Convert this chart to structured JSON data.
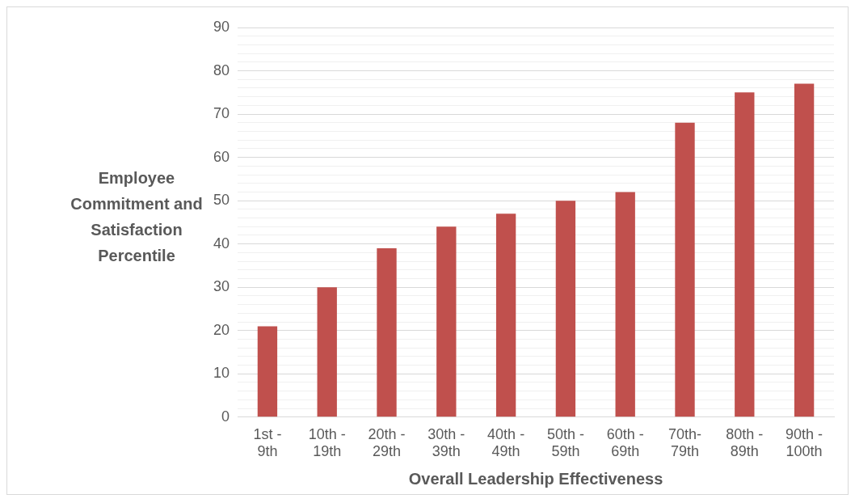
{
  "chart_data": {
    "type": "bar",
    "xlabel": "Overall Leadership Effectiveness",
    "ylabel": "Employee Commitment and Satisfaction Percentile",
    "categories": [
      "1st - 9th",
      "10th - 19th",
      "20th - 29th",
      "30th - 39th",
      "40th - 49th",
      "50th - 59th",
      "60th - 69th",
      "70th-79th",
      "80th - 89th",
      "90th - 100th"
    ],
    "values": [
      21,
      30,
      39,
      44,
      47,
      50,
      52,
      68,
      75,
      77
    ],
    "color": "#c0504d",
    "ylim": [
      0,
      90
    ],
    "yticks": [
      0,
      {
        "value": 2,
        "label": null
      },
      {
        "value": 4,
        "label": null
      },
      {
        "value": 6,
        "label": null
      },
      {
        "value": 8,
        "label": null
      },
      10,
      {
        "value": 12,
        "label": null
      },
      {
        "value": 14,
        "label": null
      },
      {
        "value": 16,
        "label": null
      },
      {
        "value": 18,
        "label": null
      },
      20,
      {
        "value": 22,
        "label": null
      },
      {
        "value": 24,
        "label": null
      },
      {
        "value": 26,
        "label": null
      },
      {
        "value": 28,
        "label": null
      },
      30,
      {
        "value": 32,
        "label": null
      },
      {
        "value": 34,
        "label": null
      },
      {
        "value": 36,
        "label": null
      },
      {
        "value": 38,
        "label": null
      },
      40,
      {
        "value": 42,
        "label": null
      },
      {
        "value": 44,
        "label": null
      },
      {
        "value": 46,
        "label": null
      },
      {
        "value": 48,
        "label": null
      },
      50,
      {
        "value": 52,
        "label": null
      },
      {
        "value": 54,
        "label": null
      },
      {
        "value": 56,
        "label": null
      },
      {
        "value": 58,
        "label": null
      },
      60,
      {
        "value": 62,
        "label": null
      },
      {
        "value": 64,
        "label": null
      },
      {
        "value": 66,
        "label": null
      },
      {
        "value": 68,
        "label": null
      },
      70,
      {
        "value": 72,
        "label": null
      },
      {
        "value": 74,
        "label": null
      },
      {
        "value": 76,
        "label": null
      },
      {
        "value": 78,
        "label": null
      },
      80,
      {
        "value": 82,
        "label": null
      },
      {
        "value": 84,
        "label": null
      },
      {
        "value": 86,
        "label": null
      },
      {
        "value": 88,
        "label": null
      },
      90
    ],
    "grid": "y"
  }
}
